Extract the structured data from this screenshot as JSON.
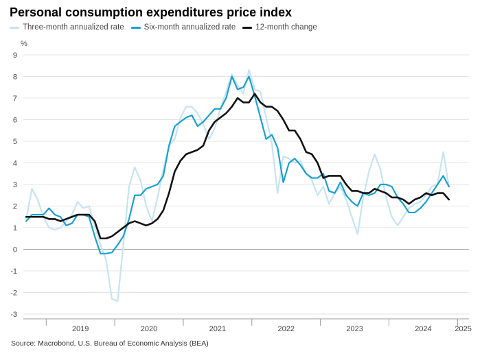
{
  "title": "Personal consumption expenditures price index",
  "source": "Source: Macrobond, U.S. Bureau of Economic Analysis (BEA)",
  "legend": [
    {
      "label": "Three-month annualized rate",
      "color": "#c6e3f2"
    },
    {
      "label": "Six-month annualized rate",
      "color": "#1a9fd0"
    },
    {
      "label": "12-month change",
      "color": "#111111"
    }
  ],
  "chart_data": {
    "type": "line",
    "ylabel": "%",
    "ylim": [
      -3,
      9
    ],
    "yticks": [
      9,
      8,
      7,
      6,
      5,
      4,
      3,
      2,
      1,
      0,
      -1,
      -2,
      -3
    ],
    "xlim": [
      2018.6667,
      2025.1667
    ],
    "xticks": [
      {
        "label": "2019",
        "value": 2019.5
      },
      {
        "label": "2020",
        "value": 2020.5
      },
      {
        "label": "2021",
        "value": 2021.5
      },
      {
        "label": "2022",
        "value": 2022.5
      },
      {
        "label": "2023",
        "value": 2023.5
      },
      {
        "label": "2024",
        "value": 2024.5
      },
      {
        "label": "2025",
        "value": 2025.0833
      }
    ],
    "year_separators": [
      2019,
      2020,
      2021,
      2022,
      2023,
      2024,
      2025
    ],
    "grid": true,
    "series": [
      {
        "name": "Three-month annualized rate",
        "color": "#c6e3f2",
        "width": 2.2,
        "points": [
          [
            2018.7083,
            1.4
          ],
          [
            2018.7917,
            2.8
          ],
          [
            2018.875,
            2.3
          ],
          [
            2018.9583,
            1.5
          ],
          [
            2019.0417,
            1.0
          ],
          [
            2019.125,
            0.9
          ],
          [
            2019.2083,
            1.0
          ],
          [
            2019.2917,
            1.3
          ],
          [
            2019.375,
            1.6
          ],
          [
            2019.4583,
            2.2
          ],
          [
            2019.5417,
            1.9
          ],
          [
            2019.625,
            2.0
          ],
          [
            2019.7083,
            1.1
          ],
          [
            2019.7917,
            0.2
          ],
          [
            2019.875,
            -0.5
          ],
          [
            2019.9583,
            -2.3
          ],
          [
            2020.0417,
            -2.4
          ],
          [
            2020.125,
            0.2
          ],
          [
            2020.2083,
            2.9
          ],
          [
            2020.2917,
            3.8
          ],
          [
            2020.375,
            3.2
          ],
          [
            2020.4583,
            2.0
          ],
          [
            2020.5417,
            1.3
          ],
          [
            2020.625,
            2.4
          ],
          [
            2020.7083,
            3.7
          ],
          [
            2020.7917,
            4.8
          ],
          [
            2020.875,
            5.1
          ],
          [
            2020.9583,
            6.1
          ],
          [
            2021.0417,
            6.6
          ],
          [
            2021.125,
            6.6
          ],
          [
            2021.2083,
            6.3
          ],
          [
            2021.2917,
            5.8
          ],
          [
            2021.375,
            5.1
          ],
          [
            2021.4583,
            5.6
          ],
          [
            2021.5417,
            6.5
          ],
          [
            2021.625,
            7.3
          ],
          [
            2021.7083,
            8.1
          ],
          [
            2021.7917,
            7.6
          ],
          [
            2021.875,
            7.2
          ],
          [
            2021.9583,
            8.3
          ],
          [
            2022.0417,
            7.4
          ],
          [
            2022.125,
            7.3
          ],
          [
            2022.2083,
            6.1
          ],
          [
            2022.2917,
            4.9
          ],
          [
            2022.375,
            2.6
          ],
          [
            2022.4583,
            4.3
          ],
          [
            2022.5417,
            4.2
          ],
          [
            2022.625,
            4.0
          ],
          [
            2022.7083,
            4.1
          ],
          [
            2022.7917,
            3.5
          ],
          [
            2022.875,
            3.2
          ],
          [
            2022.9583,
            2.5
          ],
          [
            2023.0417,
            2.9
          ],
          [
            2023.125,
            2.1
          ],
          [
            2023.2083,
            2.6
          ],
          [
            2023.2917,
            2.9
          ],
          [
            2023.375,
            2.3
          ],
          [
            2023.4583,
            1.5
          ],
          [
            2023.5417,
            0.7
          ],
          [
            2023.625,
            2.4
          ],
          [
            2023.7083,
            3.6
          ],
          [
            2023.7917,
            4.4
          ],
          [
            2023.875,
            3.7
          ],
          [
            2023.9583,
            2.4
          ],
          [
            2024.0417,
            1.5
          ],
          [
            2024.125,
            1.1
          ],
          [
            2024.2083,
            1.5
          ],
          [
            2024.2917,
            1.9
          ],
          [
            2024.375,
            2.1
          ],
          [
            2024.4583,
            2.2
          ],
          [
            2024.5417,
            2.5
          ],
          [
            2024.625,
            2.9
          ],
          [
            2024.7083,
            3.0
          ],
          [
            2024.7917,
            4.5
          ],
          [
            2024.875,
            2.9
          ]
        ]
      },
      {
        "name": "Six-month annualized rate",
        "color": "#1a9fd0",
        "width": 2.2,
        "points": [
          [
            2018.7083,
            1.3
          ],
          [
            2018.7917,
            1.6
          ],
          [
            2018.875,
            1.6
          ],
          [
            2018.9583,
            1.6
          ],
          [
            2019.0417,
            1.9
          ],
          [
            2019.125,
            1.6
          ],
          [
            2019.2083,
            1.5
          ],
          [
            2019.2917,
            1.1
          ],
          [
            2019.375,
            1.2
          ],
          [
            2019.4583,
            1.6
          ],
          [
            2019.5417,
            1.6
          ],
          [
            2019.625,
            1.5
          ],
          [
            2019.7083,
            0.6
          ],
          [
            2019.7917,
            -0.2
          ],
          [
            2019.875,
            -0.2
          ],
          [
            2019.9583,
            -0.15
          ],
          [
            2020.0417,
            0.2
          ],
          [
            2020.125,
            0.6
          ],
          [
            2020.2083,
            1.4
          ],
          [
            2020.2917,
            2.5
          ],
          [
            2020.375,
            2.5
          ],
          [
            2020.4583,
            2.8
          ],
          [
            2020.5417,
            2.9
          ],
          [
            2020.625,
            3.0
          ],
          [
            2020.7083,
            3.4
          ],
          [
            2020.7917,
            4.8
          ],
          [
            2020.875,
            5.7
          ],
          [
            2020.9583,
            5.9
          ],
          [
            2021.0417,
            6.1
          ],
          [
            2021.125,
            6.2
          ],
          [
            2021.2083,
            5.7
          ],
          [
            2021.2917,
            5.9
          ],
          [
            2021.375,
            6.2
          ],
          [
            2021.4583,
            6.5
          ],
          [
            2021.5417,
            6.5
          ],
          [
            2021.625,
            7.0
          ],
          [
            2021.7083,
            8.0
          ],
          [
            2021.7917,
            7.4
          ],
          [
            2021.875,
            7.5
          ],
          [
            2021.9583,
            8.0
          ],
          [
            2022.0417,
            7.1
          ],
          [
            2022.125,
            6.1
          ],
          [
            2022.2083,
            5.1
          ],
          [
            2022.2917,
            5.3
          ],
          [
            2022.375,
            4.7
          ],
          [
            2022.4583,
            3.1
          ],
          [
            2022.5417,
            4.0
          ],
          [
            2022.625,
            4.2
          ],
          [
            2022.7083,
            3.9
          ],
          [
            2022.7917,
            3.5
          ],
          [
            2022.875,
            3.3
          ],
          [
            2022.9583,
            3.3
          ],
          [
            2023.0417,
            3.5
          ],
          [
            2023.125,
            2.7
          ],
          [
            2023.2083,
            2.6
          ],
          [
            2023.2917,
            3.1
          ],
          [
            2023.375,
            2.5
          ],
          [
            2023.4583,
            2.2
          ],
          [
            2023.5417,
            2.0
          ],
          [
            2023.625,
            2.6
          ],
          [
            2023.7083,
            2.5
          ],
          [
            2023.7917,
            2.6
          ],
          [
            2023.875,
            3.0
          ],
          [
            2023.9583,
            3.0
          ],
          [
            2024.0417,
            2.9
          ],
          [
            2024.125,
            2.4
          ],
          [
            2024.2083,
            2.1
          ],
          [
            2024.2917,
            1.7
          ],
          [
            2024.375,
            1.7
          ],
          [
            2024.4583,
            1.9
          ],
          [
            2024.5417,
            2.2
          ],
          [
            2024.625,
            2.6
          ],
          [
            2024.7083,
            3.0
          ],
          [
            2024.7917,
            3.4
          ],
          [
            2024.875,
            2.9
          ]
        ]
      },
      {
        "name": "12-month change",
        "color": "#111111",
        "width": 2.6,
        "points": [
          [
            2018.7083,
            1.5
          ],
          [
            2018.7917,
            1.5
          ],
          [
            2018.875,
            1.5
          ],
          [
            2018.9583,
            1.5
          ],
          [
            2019.0417,
            1.4
          ],
          [
            2019.125,
            1.4
          ],
          [
            2019.2083,
            1.3
          ],
          [
            2019.2917,
            1.4
          ],
          [
            2019.375,
            1.5
          ],
          [
            2019.4583,
            1.6
          ],
          [
            2019.5417,
            1.6
          ],
          [
            2019.625,
            1.6
          ],
          [
            2019.7083,
            1.3
          ],
          [
            2019.7917,
            0.5
          ],
          [
            2019.875,
            0.5
          ],
          [
            2019.9583,
            0.6
          ],
          [
            2020.0417,
            0.8
          ],
          [
            2020.125,
            1.0
          ],
          [
            2020.2083,
            1.2
          ],
          [
            2020.2917,
            1.3
          ],
          [
            2020.375,
            1.2
          ],
          [
            2020.4583,
            1.1
          ],
          [
            2020.5417,
            1.2
          ],
          [
            2020.625,
            1.4
          ],
          [
            2020.7083,
            1.8
          ],
          [
            2020.7917,
            2.6
          ],
          [
            2020.875,
            3.6
          ],
          [
            2020.9583,
            4.1
          ],
          [
            2021.0417,
            4.4
          ],
          [
            2021.125,
            4.5
          ],
          [
            2021.2083,
            4.6
          ],
          [
            2021.2917,
            4.8
          ],
          [
            2021.375,
            5.5
          ],
          [
            2021.4583,
            5.9
          ],
          [
            2021.5417,
            6.1
          ],
          [
            2021.625,
            6.3
          ],
          [
            2021.7083,
            6.6
          ],
          [
            2021.7917,
            7.0
          ],
          [
            2021.875,
            6.8
          ],
          [
            2021.9583,
            6.8
          ],
          [
            2022.0417,
            7.2
          ],
          [
            2022.125,
            6.8
          ],
          [
            2022.2083,
            6.6
          ],
          [
            2022.2917,
            6.6
          ],
          [
            2022.375,
            6.4
          ],
          [
            2022.4583,
            6.0
          ],
          [
            2022.5417,
            5.5
          ],
          [
            2022.625,
            5.5
          ],
          [
            2022.7083,
            5.1
          ],
          [
            2022.7917,
            4.5
          ],
          [
            2022.875,
            4.4
          ],
          [
            2022.9583,
            4.0
          ],
          [
            2023.0417,
            3.3
          ],
          [
            2023.125,
            3.4
          ],
          [
            2023.2083,
            3.4
          ],
          [
            2023.2917,
            3.4
          ],
          [
            2023.375,
            3.0
          ],
          [
            2023.4583,
            2.7
          ],
          [
            2023.5417,
            2.7
          ],
          [
            2023.625,
            2.6
          ],
          [
            2023.7083,
            2.6
          ],
          [
            2023.7917,
            2.8
          ],
          [
            2023.875,
            2.7
          ],
          [
            2023.9583,
            2.6
          ],
          [
            2024.0417,
            2.4
          ],
          [
            2024.125,
            2.4
          ],
          [
            2024.2083,
            2.3
          ],
          [
            2024.2917,
            2.1
          ],
          [
            2024.375,
            2.3
          ],
          [
            2024.4583,
            2.4
          ],
          [
            2024.5417,
            2.6
          ],
          [
            2024.625,
            2.5
          ],
          [
            2024.7083,
            2.6
          ],
          [
            2024.7917,
            2.6
          ],
          [
            2024.875,
            2.3
          ]
        ]
      }
    ]
  }
}
